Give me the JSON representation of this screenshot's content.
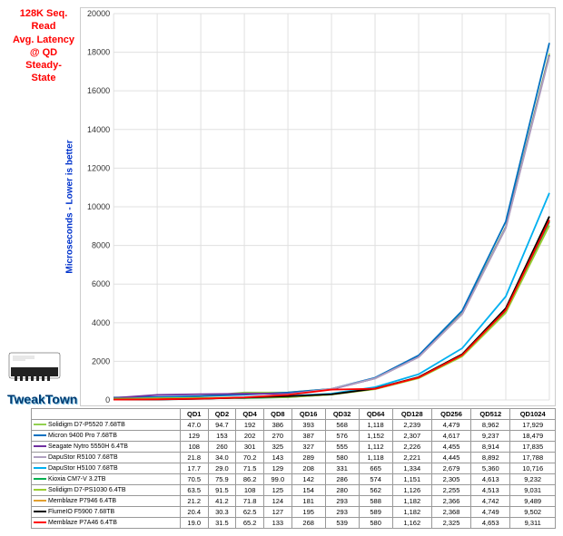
{
  "watermark": "TweakTown",
  "chart": {
    "title_lines": [
      "128K Seq.",
      "Read",
      "Avg. Latency",
      "@ QD",
      "Steady-",
      "State"
    ],
    "ylabel": "Microseconds - Lower is better",
    "x_labels": [
      "QD1",
      "QD2",
      "QD4",
      "QD8",
      "QD16",
      "QD32",
      "QD64",
      "QD128",
      "QD256",
      "QD512",
      "QD1024"
    ],
    "ylim": [
      0,
      20000
    ],
    "y_ticks": [
      0,
      2000,
      4000,
      6000,
      8000,
      10000,
      12000,
      14000,
      16000,
      18000,
      20000
    ],
    "background_color": "#ffffff",
    "grid_color": "#e0e0e0",
    "title_color": "#ff0000",
    "ylabel_color": "#0033cc",
    "series": [
      {
        "name": "Solidigm D7-P5520 7.68TB",
        "color": "#92d050",
        "values": [
          47.0,
          94.7,
          191.8,
          386,
          393,
          568,
          1118,
          2239,
          4479,
          8962,
          17929
        ]
      },
      {
        "name": "Micron 9400 Pro 7.68TB",
        "color": "#0070c0",
        "values": [
          129.2,
          152.9,
          201.6,
          270,
          387,
          576,
          1152,
          2307,
          4617,
          9237,
          18479
        ]
      },
      {
        "name": "Seagate Nytro 5550H 6.4TB",
        "color": "#7030a0",
        "values": [
          108.2,
          259.8,
          301.2,
          325,
          327,
          555,
          1112,
          2226,
          4455,
          8914,
          17835
        ]
      },
      {
        "name": "DapuStor R5100 7.68TB",
        "color": "#b0a0c0",
        "values": [
          21.8,
          34.0,
          70.2,
          143,
          289,
          580,
          1118,
          2221,
          4445,
          8892,
          17788
        ]
      },
      {
        "name": "DapuStor H5100 7.68TB",
        "color": "#00b0f0",
        "values": [
          17.7,
          29.0,
          71.5,
          129,
          208,
          331,
          665,
          1334,
          2679,
          5360,
          10716
        ]
      },
      {
        "name": "Kioxia CM7-V 3.2TB",
        "color": "#00b050",
        "values": [
          70.5,
          75.9,
          86.2,
          99,
          142,
          286,
          574,
          1151,
          2305,
          4613,
          9232
        ]
      },
      {
        "name": "Solidigm D7-PS1030 6.4TB",
        "color": "#9acd32",
        "values": [
          63.5,
          91.5,
          108.2,
          125,
          154,
          280,
          562,
          1126,
          2255,
          4513,
          9031
        ]
      },
      {
        "name": "Memblaze P7946 6.4TB",
        "color": "#e2a030",
        "values": [
          21.2,
          41.2,
          71.8,
          124,
          181,
          293,
          588,
          1182,
          2366,
          4742,
          9489
        ]
      },
      {
        "name": "FlumeIO F5900 7.68TB",
        "color": "#000000",
        "values": [
          20.4,
          30.3,
          62.5,
          127,
          195,
          293,
          589,
          1182,
          2368,
          4749,
          9502
        ]
      },
      {
        "name": "Memblaze P7A46 6.4TB",
        "color": "#ff0000",
        "values": [
          19.0,
          31.5,
          65.2,
          133,
          268,
          539,
          580,
          1162,
          2325,
          4653,
          9311
        ]
      }
    ]
  }
}
